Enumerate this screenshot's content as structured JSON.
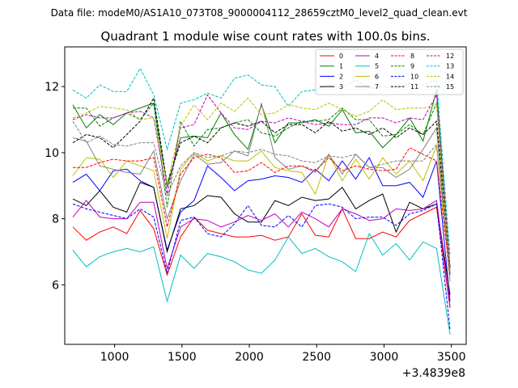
{
  "header": {
    "data_file": "Data file: modeM0/AS1A10_073T08_9000004112_28659cztM0_level2_quad_clean.evt"
  },
  "chart_data": {
    "type": "line",
    "title": "Quadrant 1 module wise count rates with 100.0s bins.",
    "xlabel": "",
    "ylabel": "",
    "x_offset_label": "+3.4839e8",
    "xlim": [
      630,
      3610
    ],
    "ylim": [
      4.2,
      13.2
    ],
    "xticks": [
      1000,
      1500,
      2000,
      2500,
      3000,
      3500
    ],
    "xtick_labels": [
      "1000",
      "1500",
      "2000",
      "2500",
      "3000",
      "3500"
    ],
    "yticks": [
      6,
      8,
      10,
      12
    ],
    "ytick_labels": [
      "6",
      "8",
      "10",
      "12"
    ],
    "grid": false,
    "legend_position": "top-right",
    "x": [
      690,
      790,
      890,
      990,
      1090,
      1190,
      1290,
      1390,
      1490,
      1590,
      1690,
      1790,
      1890,
      1990,
      2090,
      2190,
      2290,
      2390,
      2490,
      2590,
      2690,
      2790,
      2890,
      2990,
      3090,
      3190,
      3290,
      3390,
      3490
    ],
    "series": [
      {
        "name": "0",
        "color": "#ff0000",
        "dash": "solid",
        "values": [
          7.75,
          7.35,
          7.6,
          7.75,
          7.55,
          8.25,
          7.7,
          6.3,
          7.45,
          8.05,
          7.65,
          7.55,
          7.45,
          7.45,
          7.5,
          7.35,
          7.45,
          8.15,
          7.5,
          7.45,
          8.3,
          7.4,
          7.4,
          7.6,
          7.45,
          7.95,
          8.15,
          8.35,
          5.3
        ]
      },
      {
        "name": "1",
        "color": "#008000",
        "dash": "solid",
        "values": [
          11.45,
          10.75,
          11.15,
          10.85,
          11.2,
          11.35,
          11.5,
          8.95,
          10.45,
          10.5,
          10.45,
          11.2,
          10.55,
          10.1,
          11.45,
          10.3,
          10.9,
          10.9,
          11.0,
          10.8,
          11.3,
          10.6,
          10.65,
          10.15,
          10.55,
          11.05,
          10.35,
          11.9,
          6.5
        ]
      },
      {
        "name": "2",
        "color": "#0000ff",
        "dash": "solid",
        "values": [
          9.1,
          9.35,
          8.85,
          9.45,
          9.5,
          9.15,
          8.95,
          7.05,
          8.2,
          8.55,
          9.6,
          9.25,
          8.85,
          9.15,
          9.2,
          9.3,
          9.25,
          9.1,
          9.5,
          9.15,
          9.75,
          9.2,
          9.85,
          9.0,
          9.0,
          9.1,
          8.65,
          9.75,
          5.5
        ]
      },
      {
        "name": "3",
        "color": "#000000",
        "dash": "solid",
        "values": [
          8.6,
          8.4,
          8.85,
          8.35,
          8.2,
          9.1,
          8.95,
          7.0,
          8.3,
          8.4,
          8.7,
          8.65,
          8.15,
          7.9,
          7.9,
          8.55,
          8.4,
          8.65,
          8.55,
          8.6,
          8.95,
          8.3,
          8.55,
          8.75,
          7.6,
          8.5,
          8.3,
          8.45,
          5.7
        ]
      },
      {
        "name": "4",
        "color": "#bf00bf",
        "dash": "solid",
        "values": [
          8.05,
          8.55,
          8.05,
          8.0,
          8.0,
          8.5,
          8.5,
          6.5,
          7.75,
          8.0,
          7.95,
          7.75,
          7.9,
          8.1,
          7.95,
          8.15,
          7.75,
          8.2,
          8.0,
          7.75,
          8.3,
          8.15,
          7.95,
          8.0,
          8.3,
          8.25,
          8.3,
          8.55,
          5.35
        ]
      },
      {
        "name": "5",
        "color": "#00bfbf",
        "dash": "solid",
        "values": [
          7.05,
          6.55,
          6.85,
          7.0,
          7.1,
          7.0,
          7.15,
          5.5,
          6.9,
          6.5,
          6.95,
          6.85,
          6.7,
          6.45,
          6.35,
          6.75,
          7.45,
          6.95,
          7.1,
          6.85,
          6.7,
          6.4,
          7.55,
          6.9,
          7.25,
          6.75,
          7.3,
          7.1,
          4.5
        ]
      },
      {
        "name": "6",
        "color": "#bfbf00",
        "dash": "solid",
        "values": [
          9.3,
          9.85,
          9.8,
          9.25,
          9.75,
          9.6,
          9.45,
          7.4,
          9.5,
          10.0,
          9.75,
          9.9,
          9.75,
          9.75,
          10.05,
          9.55,
          9.45,
          9.4,
          8.75,
          9.95,
          9.15,
          9.8,
          9.2,
          9.85,
          9.35,
          9.75,
          9.15,
          10.2,
          6.3
        ]
      },
      {
        "name": "7",
        "color": "#808080",
        "dash": "solid",
        "values": [
          10.45,
          10.35,
          9.6,
          9.5,
          9.4,
          9.35,
          10.05,
          8.0,
          9.15,
          9.95,
          9.65,
          9.7,
          10.05,
          9.9,
          11.5,
          9.85,
          9.5,
          9.6,
          9.4,
          9.95,
          9.35,
          9.95,
          9.55,
          9.55,
          9.25,
          9.5,
          10.1,
          10.75,
          6.1
        ]
      },
      {
        "name": "8",
        "color": "#ff0000",
        "dash": "dashed",
        "values": [
          9.55,
          9.55,
          9.7,
          9.8,
          9.75,
          9.75,
          9.85,
          7.75,
          9.35,
          9.85,
          9.95,
          9.85,
          9.4,
          9.45,
          9.7,
          9.4,
          9.6,
          9.6,
          9.45,
          9.85,
          9.45,
          9.6,
          9.5,
          9.45,
          9.5,
          10.15,
          9.95,
          9.75,
          6.3
        ]
      },
      {
        "name": "9",
        "color": "#008000",
        "dash": "dashed",
        "values": [
          11.35,
          11.35,
          10.8,
          11.05,
          11.2,
          11.0,
          11.5,
          8.35,
          10.95,
          10.2,
          10.7,
          10.75,
          10.9,
          11.0,
          10.6,
          10.5,
          10.75,
          10.95,
          10.95,
          11.0,
          11.35,
          11.0,
          11.0,
          10.5,
          10.55,
          10.85,
          10.55,
          11.5,
          6.3
        ]
      },
      {
        "name": "10",
        "color": "#0000ff",
        "dash": "dashed",
        "values": [
          8.45,
          8.3,
          8.2,
          8.1,
          8.0,
          8.3,
          8.05,
          6.35,
          7.95,
          8.05,
          7.55,
          7.45,
          7.85,
          8.4,
          7.8,
          7.75,
          8.1,
          7.75,
          8.4,
          8.45,
          8.35,
          8.0,
          8.05,
          8.05,
          7.8,
          8.15,
          8.25,
          8.45,
          4.65
        ]
      },
      {
        "name": "11",
        "color": "#000000",
        "dash": "dashed",
        "values": [
          10.3,
          10.55,
          10.45,
          10.15,
          10.55,
          10.95,
          11.65,
          9.05,
          10.3,
          10.5,
          10.3,
          10.75,
          10.9,
          10.8,
          10.95,
          10.6,
          10.85,
          10.85,
          10.6,
          10.95,
          10.65,
          10.75,
          10.55,
          10.75,
          10.45,
          10.75,
          10.55,
          10.95,
          6.55
        ]
      },
      {
        "name": "12",
        "color": "#bf00bf",
        "dash": "dashed",
        "values": [
          11.0,
          11.15,
          11.05,
          11.05,
          11.2,
          11.25,
          11.05,
          8.75,
          10.75,
          10.85,
          11.75,
          11.2,
          10.75,
          10.7,
          10.95,
          10.9,
          11.05,
          10.95,
          10.85,
          10.9,
          10.85,
          10.85,
          11.05,
          11.05,
          10.9,
          11.05,
          11.0,
          11.75,
          6.5
        ]
      },
      {
        "name": "13",
        "color": "#00bfbf",
        "dash": "dashed",
        "values": [
          11.9,
          11.65,
          12.05,
          11.85,
          11.85,
          12.55,
          11.75,
          10.1,
          11.5,
          11.6,
          11.8,
          11.65,
          12.25,
          12.35,
          12.05,
          12.0,
          11.4,
          11.85,
          11.9,
          12.05,
          11.95,
          12.2,
          11.95,
          12.0,
          11.95,
          12.1,
          12.05,
          12.2,
          6.9
        ]
      },
      {
        "name": "14",
        "color": "#bfbf00",
        "dash": "dashed",
        "values": [
          11.05,
          11.2,
          11.4,
          11.35,
          11.3,
          11.0,
          11.05,
          9.05,
          10.8,
          11.45,
          11.0,
          11.5,
          11.25,
          11.65,
          11.15,
          11.2,
          11.45,
          11.35,
          11.3,
          11.5,
          11.3,
          11.1,
          11.25,
          11.6,
          11.3,
          11.35,
          11.35,
          11.45,
          6.4
        ]
      },
      {
        "name": "15",
        "color": "#808080",
        "dash": "dashed",
        "values": [
          10.95,
          10.3,
          10.5,
          10.25,
          10.2,
          10.3,
          10.3,
          8.7,
          9.6,
          10.0,
          9.85,
          9.9,
          10.05,
          10.0,
          10.1,
          9.95,
          9.9,
          9.75,
          9.7,
          9.9,
          9.85,
          9.95,
          9.55,
          9.65,
          9.75,
          9.75,
          9.75,
          10.25,
          6.4
        ]
      }
    ]
  }
}
